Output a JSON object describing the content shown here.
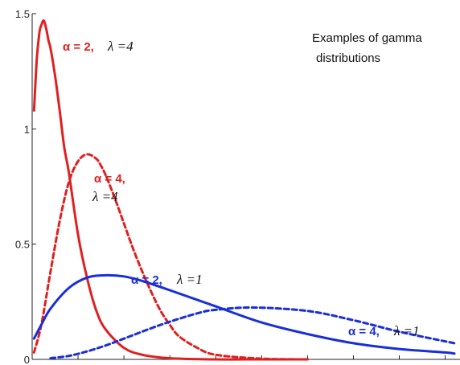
{
  "chart_data": {
    "type": "line",
    "title": "Examples of gamma distributions",
    "title_lines": [
      "Examples of gamma",
      "distributions"
    ],
    "xlabel": "",
    "ylabel": "",
    "xlim": [
      0,
      4.6
    ],
    "ylim": [
      0,
      1.5
    ],
    "yticks": [
      0,
      0.5,
      1,
      1.5
    ],
    "ytick_labels": [
      "0",
      "0.5",
      "1",
      "1.5"
    ],
    "grid": false,
    "series": [
      {
        "label_alpha": "α = 2,",
        "label_lambda": "λ =4",
        "alpha": 2,
        "lambda": 4,
        "color": "#e02020",
        "dash": "solid",
        "x": [
          0.02,
          0.05,
          0.08,
          0.1,
          0.125,
          0.15,
          0.18,
          0.2,
          0.25,
          0.3,
          0.35,
          0.4,
          0.5,
          0.6,
          0.7,
          0.8,
          1.0,
          1.2,
          1.5,
          2.0,
          2.5,
          3.0
        ],
        "y": [
          1.08,
          1.3,
          1.42,
          1.45,
          1.47,
          1.44,
          1.38,
          1.35,
          1.23,
          1.08,
          0.92,
          0.81,
          0.54,
          0.35,
          0.21,
          0.13,
          0.05,
          0.02,
          0.005,
          0.0,
          0.0,
          0.0
        ]
      },
      {
        "label_alpha": "α = 4,",
        "label_lambda": "λ =4",
        "alpha": 4,
        "lambda": 4,
        "color": "#e02020",
        "dash": "dashed",
        "x": [
          0.02,
          0.1,
          0.2,
          0.3,
          0.4,
          0.5,
          0.6,
          0.7,
          0.75,
          0.8,
          0.9,
          1.0,
          1.1,
          1.2,
          1.3,
          1.4,
          1.5,
          1.6,
          1.8,
          2.0,
          2.5,
          3.0
        ],
        "y": [
          0.03,
          0.15,
          0.38,
          0.6,
          0.77,
          0.86,
          0.89,
          0.87,
          0.84,
          0.8,
          0.7,
          0.59,
          0.48,
          0.38,
          0.29,
          0.21,
          0.15,
          0.1,
          0.05,
          0.02,
          0.003,
          0.0
        ]
      },
      {
        "label_alpha": "α = 2,",
        "label_lambda": "λ =1",
        "alpha": 2,
        "lambda": 1,
        "color": "#1a2fd6",
        "dash": "solid",
        "x": [
          0.02,
          0.1,
          0.2,
          0.4,
          0.6,
          0.8,
          1.0,
          1.2,
          1.5,
          2.0,
          2.5,
          3.0,
          3.5,
          4.0,
          4.5,
          4.6
        ],
        "y": [
          0.09,
          0.15,
          0.22,
          0.31,
          0.355,
          0.365,
          0.36,
          0.34,
          0.3,
          0.23,
          0.16,
          0.11,
          0.07,
          0.045,
          0.03,
          0.025
        ]
      },
      {
        "label_alpha": "α = 4,",
        "label_lambda": "λ =1",
        "alpha": 4,
        "lambda": 1,
        "color": "#1a2fd6",
        "dash": "dashed",
        "x": [
          0.2,
          0.4,
          0.6,
          0.8,
          1.0,
          1.4,
          1.8,
          2.0,
          2.4,
          3.0,
          3.5,
          4.0,
          4.6
        ],
        "y": [
          0.005,
          0.015,
          0.035,
          0.06,
          0.09,
          0.15,
          0.2,
          0.215,
          0.225,
          0.21,
          0.17,
          0.12,
          0.07
        ]
      }
    ]
  }
}
